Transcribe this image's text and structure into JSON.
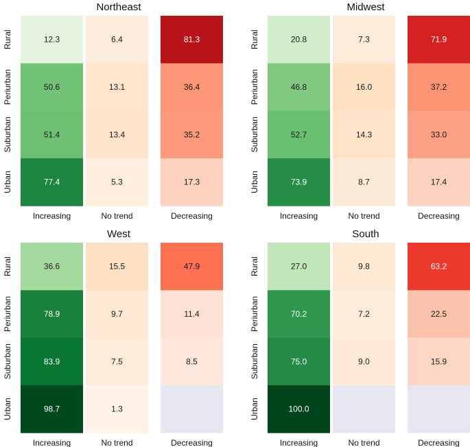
{
  "chart_data": [
    {
      "type": "heatmap",
      "title": "Northeast",
      "rows": [
        "Rural",
        "Periurban",
        "Suburban",
        "Urban"
      ],
      "columns": [
        "Increasing",
        "No trend",
        "Decreasing"
      ],
      "values": [
        [
          12.3,
          6.4,
          81.3
        ],
        [
          50.6,
          13.1,
          36.4
        ],
        [
          51.4,
          13.4,
          35.2
        ],
        [
          77.4,
          5.3,
          17.3
        ]
      ],
      "colormaps": {
        "Increasing": "Greens",
        "No trend": "Oranges",
        "Decreasing": "Reds"
      }
    },
    {
      "type": "heatmap",
      "title": "Midwest",
      "rows": [
        "Rural",
        "Periurban",
        "Suburban",
        "Urban"
      ],
      "columns": [
        "Increasing",
        "No trend",
        "Decreasing"
      ],
      "values": [
        [
          20.8,
          7.3,
          71.9
        ],
        [
          46.8,
          16.0,
          37.2
        ],
        [
          52.7,
          14.3,
          33.0
        ],
        [
          73.9,
          8.7,
          17.4
        ]
      ],
      "colormaps": {
        "Increasing": "Greens",
        "No trend": "Oranges",
        "Decreasing": "Reds"
      }
    },
    {
      "type": "heatmap",
      "title": "West",
      "rows": [
        "Rural",
        "Periurban",
        "Suburban",
        "Urban"
      ],
      "columns": [
        "Increasing",
        "No trend",
        "Decreasing"
      ],
      "values": [
        [
          36.6,
          15.5,
          47.9
        ],
        [
          78.9,
          9.7,
          11.4
        ],
        [
          83.9,
          7.5,
          8.5
        ],
        [
          98.7,
          1.3,
          null
        ]
      ],
      "colormaps": {
        "Increasing": "Greens",
        "No trend": "Oranges",
        "Decreasing": "Reds"
      }
    },
    {
      "type": "heatmap",
      "title": "South",
      "rows": [
        "Rural",
        "Periurban",
        "Suburban",
        "Urban"
      ],
      "columns": [
        "Increasing",
        "No trend",
        "Decreasing"
      ],
      "values": [
        [
          27.0,
          9.8,
          63.2
        ],
        [
          70.2,
          7.2,
          22.5
        ],
        [
          75.0,
          9.0,
          15.9
        ],
        [
          100.0,
          null,
          null
        ]
      ],
      "colormaps": {
        "Increasing": "Greens",
        "No trend": "Oranges",
        "Decreasing": "Reds"
      }
    }
  ],
  "colors": {
    "missing": "#e6e7f0",
    "greens": [
      "#f7fcf5",
      "#e5f5e0",
      "#c7e9c0",
      "#a1d99b",
      "#74c476",
      "#41ab5d",
      "#238b45",
      "#006d2c",
      "#00441b"
    ],
    "oranges": [
      "#fff5eb",
      "#fee6ce",
      "#fdd0a2",
      "#fdae6b",
      "#fd8d3c",
      "#f16913",
      "#d94801",
      "#a63603",
      "#7f2704"
    ],
    "reds": [
      "#fff5f0",
      "#fee0d2",
      "#fcbba1",
      "#fc9272",
      "#fb6a4a",
      "#ef3b2c",
      "#cb181d",
      "#a50f15",
      "#67000d"
    ]
  }
}
